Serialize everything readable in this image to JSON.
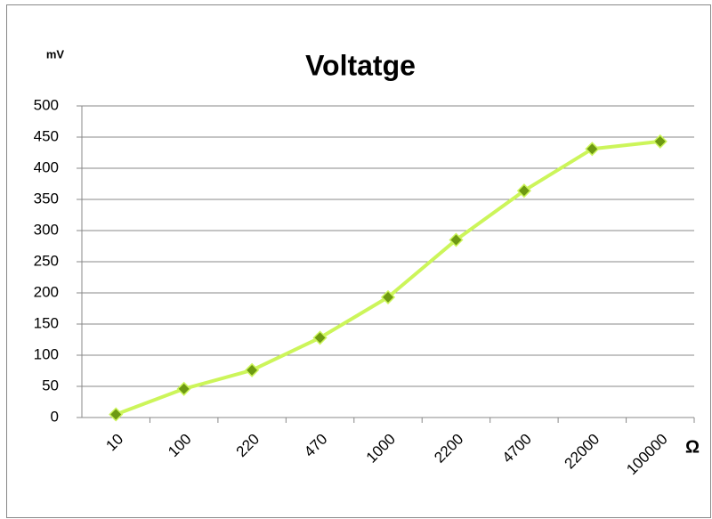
{
  "chart_data": {
    "type": "line",
    "title": "Voltatge",
    "y_label": "mV",
    "x_label": "Ω",
    "categories": [
      "10",
      "100",
      "220",
      "470",
      "1000",
      "2200",
      "4700",
      "22000",
      "100000"
    ],
    "values": [
      5,
      46,
      76,
      128,
      193,
      285,
      364,
      431,
      443
    ],
    "color": "#ccf55a",
    "marker_color": "#6e9a12",
    "ylim": [
      0,
      500
    ],
    "yticks": [
      0,
      50,
      100,
      150,
      200,
      250,
      300,
      350,
      400,
      450,
      500
    ],
    "grid": true
  }
}
